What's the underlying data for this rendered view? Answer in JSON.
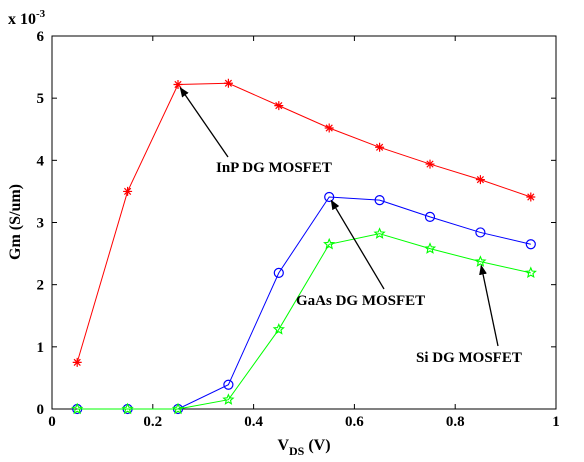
{
  "chart_data": {
    "type": "line",
    "xlabel": "V",
    "xlabel_sub": "DS",
    "xlabel_suffix": " (V)",
    "ylabel": "Gm (S/um)",
    "y_multiplier": "x 10",
    "y_multiplier_exp": "-3",
    "xlim": [
      0,
      1
    ],
    "ylim": [
      0,
      6
    ],
    "xticks": [
      0,
      0.2,
      0.4,
      0.6,
      0.8,
      1
    ],
    "xtick_labels": [
      "0",
      "0.2",
      "0.4",
      "0.6",
      "0.8",
      "1"
    ],
    "yticks": [
      0,
      1,
      2,
      3,
      4,
      5,
      6
    ],
    "ytick_labels": [
      "0",
      "1",
      "2",
      "3",
      "4",
      "5",
      "6"
    ],
    "grid": false,
    "series": [
      {
        "name": "InP DG MOSFET",
        "color": "#ff0000",
        "marker": "asterisk",
        "x": [
          0.05,
          0.15,
          0.25,
          0.35,
          0.45,
          0.55,
          0.65,
          0.75,
          0.85,
          0.95
        ],
        "y": [
          0.75,
          3.5,
          5.22,
          5.24,
          4.88,
          4.52,
          4.21,
          3.94,
          3.69,
          3.41
        ]
      },
      {
        "name": "GaAs DG MOSFET",
        "color": "#0000ff",
        "marker": "circle",
        "x": [
          0.05,
          0.15,
          0.25,
          0.35,
          0.45,
          0.55,
          0.65,
          0.75,
          0.85,
          0.95
        ],
        "y": [
          0.0,
          0.0,
          0.0,
          0.39,
          2.19,
          3.41,
          3.36,
          3.09,
          2.84,
          2.65
        ]
      },
      {
        "name": "Si DG MOSFET",
        "color": "#00ff00",
        "marker": "star",
        "x": [
          0.05,
          0.15,
          0.25,
          0.35,
          0.45,
          0.55,
          0.65,
          0.75,
          0.85,
          0.95
        ],
        "y": [
          0.0,
          0.0,
          0.0,
          0.15,
          1.28,
          2.65,
          2.82,
          2.58,
          2.37,
          2.19
        ]
      }
    ],
    "annotations": [
      {
        "text": "InP DG MOSFET",
        "series": "InP DG MOSFET",
        "arrow_to": [
          0.25,
          5.22
        ]
      },
      {
        "text": "GaAs DG MOSFET",
        "series": "GaAs DG MOSFET",
        "arrow_to": [
          0.55,
          3.41
        ]
      },
      {
        "text": "Si DG MOSFET",
        "series": "Si DG MOSFET",
        "arrow_to": [
          0.85,
          2.37
        ]
      }
    ]
  }
}
